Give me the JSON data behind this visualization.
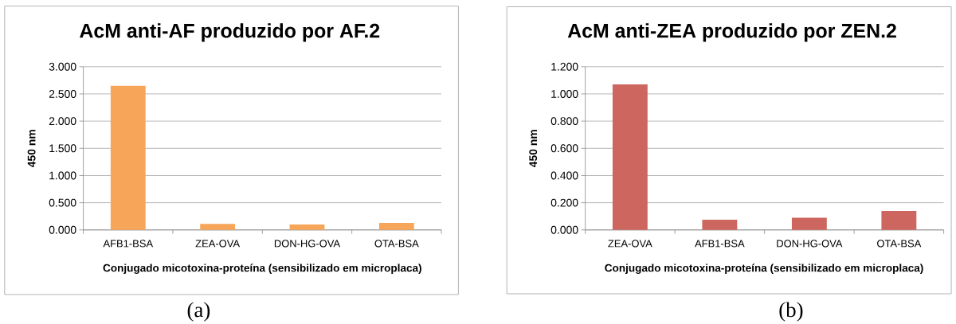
{
  "chart_data": [
    {
      "type": "bar",
      "title": "AcM anti-AF produzido por AF.2",
      "xlabel": "Conjugado micotoxina-proteína (sensibilizado em microplaca)",
      "ylabel": "450 nm",
      "categories": [
        "AFB1-BSA",
        "ZEA-OVA",
        "DON-HG-OVA",
        "OTA-BSA"
      ],
      "values": [
        2.65,
        0.11,
        0.1,
        0.13
      ],
      "color": "#f7a659",
      "ylim": [
        0,
        3
      ],
      "yticks": [
        {
          "value": 0,
          "label": "0.000"
        },
        {
          "value": 0.5,
          "label": "0.500"
        },
        {
          "value": 1,
          "label": "1.000"
        },
        {
          "value": 1.5,
          "label": "1.500"
        },
        {
          "value": 2,
          "label": "2.000"
        },
        {
          "value": 2.5,
          "label": "2.500"
        },
        {
          "value": 3,
          "label": "3.000"
        }
      ],
      "grid": "y",
      "annotations": [
        "(a)"
      ]
    },
    {
      "type": "bar",
      "title": "AcM anti-ZEA produzido por ZEN.2",
      "xlabel": "Conjugado micotoxina-proteína (sensibilizado em microplaca)",
      "ylabel": "450 nm",
      "categories": [
        "ZEA-OVA",
        "AFB1-BSA",
        "DON-HG-OVA",
        "OTA-BSA"
      ],
      "values": [
        1.07,
        0.075,
        0.09,
        0.14
      ],
      "color": "#cd665e",
      "ylim": [
        0,
        1.2
      ],
      "yticks": [
        {
          "value": 0,
          "label": "0.000"
        },
        {
          "value": 0.2,
          "label": "0.200"
        },
        {
          "value": 0.4,
          "label": "0.400"
        },
        {
          "value": 0.6,
          "label": "0.600"
        },
        {
          "value": 0.8,
          "label": "0.800"
        },
        {
          "value": 1,
          "label": "1.000"
        },
        {
          "value": 1.2,
          "label": "1.200"
        }
      ],
      "grid": "y",
      "annotations": [
        "(b)"
      ]
    }
  ]
}
